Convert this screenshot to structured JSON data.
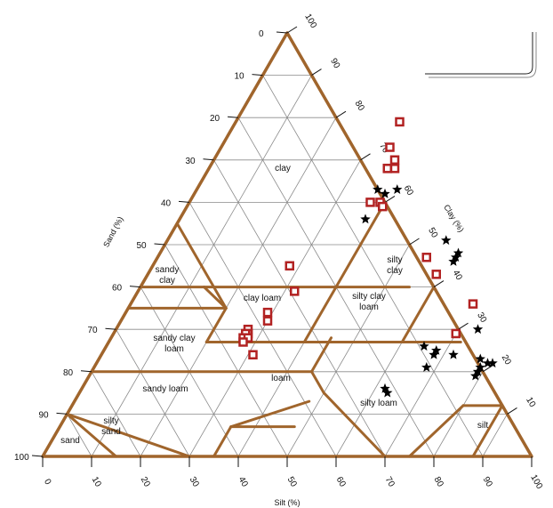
{
  "chart_data": {
    "type": "scatter",
    "subtype": "ternary-soil-texture",
    "axes": {
      "sand": {
        "label": "Sand (%)",
        "ticks": [
          "0",
          "10",
          "20",
          "30",
          "40",
          "50",
          "60",
          "70",
          "80",
          "90",
          "100"
        ]
      },
      "clay": {
        "label": "Clay (%)",
        "ticks": [
          "100",
          "90",
          "80",
          "70",
          "60",
          "50",
          "40",
          "30",
          "20",
          "10"
        ]
      },
      "silt": {
        "label": "Silt (%)",
        "ticks": [
          "0",
          "10",
          "20",
          "30",
          "40",
          "50",
          "60",
          "70",
          "80",
          "90",
          "100"
        ]
      },
      "range": [
        0,
        100
      ],
      "grid": true,
      "grid_step": 10
    },
    "regions": [
      {
        "name": "clay"
      },
      {
        "name": "silty clay",
        "lines": [
          "silty",
          "clay"
        ]
      },
      {
        "name": "sandy clay",
        "lines": [
          "sandy",
          "clay"
        ]
      },
      {
        "name": "clay loam",
        "lines": [
          "clay loam"
        ]
      },
      {
        "name": "silty clay loam",
        "lines": [
          "silty clay",
          "loam"
        ]
      },
      {
        "name": "sandy clay loam",
        "lines": [
          "sandy clay",
          "loam"
        ]
      },
      {
        "name": "loam",
        "lines": [
          "loam"
        ]
      },
      {
        "name": "sandy loam",
        "lines": [
          "sandy loam"
        ]
      },
      {
        "name": "silty loam",
        "lines": [
          "silty loam"
        ]
      },
      {
        "name": "silt",
        "lines": [
          "silt"
        ]
      },
      {
        "name": "silty sand",
        "lines": [
          "silty",
          "sand"
        ]
      },
      {
        "name": "sand",
        "lines": [
          "sand"
        ]
      }
    ],
    "series": [
      {
        "marker": "square",
        "color": "#b22222",
        "points": [
          {
            "silt": 33.5,
            "clay": 79
          },
          {
            "silt": 34.5,
            "clay": 73
          },
          {
            "silt": 37,
            "clay": 70
          },
          {
            "silt": 36.5,
            "clay": 68
          },
          {
            "silt": 38,
            "clay": 68
          },
          {
            "silt": 36.5,
            "clay": 68
          },
          {
            "silt": 37,
            "clay": 60
          },
          {
            "silt": 39,
            "clay": 60
          },
          {
            "silt": 40,
            "clay": 59
          },
          {
            "silt": 55,
            "clay": 47
          },
          {
            "silt": 59,
            "clay": 43
          },
          {
            "silt": 28,
            "clay": 45
          },
          {
            "silt": 32,
            "clay": 39
          },
          {
            "silt": 29,
            "clay": 34
          },
          {
            "silt": 30,
            "clay": 32
          },
          {
            "silt": 27,
            "clay": 30
          },
          {
            "silt": 27.5,
            "clay": 29
          },
          {
            "silt": 27,
            "clay": 29
          },
          {
            "silt": 27,
            "clay": 28
          },
          {
            "silt": 28,
            "clay": 28
          },
          {
            "silt": 27.5,
            "clay": 27
          },
          {
            "silt": 31,
            "clay": 24
          },
          {
            "silt": 70,
            "clay": 36
          },
          {
            "silt": 70,
            "clay": 29
          }
        ]
      },
      {
        "marker": "star",
        "color": "#000000",
        "points": [
          {
            "silt": 37,
            "clay": 63
          },
          {
            "silt": 39,
            "clay": 62
          },
          {
            "silt": 41,
            "clay": 63
          },
          {
            "silt": 38,
            "clay": 56
          },
          {
            "silt": 57,
            "clay": 51
          },
          {
            "silt": 61,
            "clay": 48
          },
          {
            "silt": 61,
            "clay": 47
          },
          {
            "silt": 61,
            "clay": 46
          },
          {
            "silt": 74,
            "clay": 30
          },
          {
            "silt": 65,
            "clay": 26
          },
          {
            "silt": 68,
            "clay": 25
          },
          {
            "silt": 68,
            "clay": 24
          },
          {
            "silt": 72,
            "clay": 24
          },
          {
            "silt": 78,
            "clay": 23
          },
          {
            "silt": 79,
            "clay": 21
          },
          {
            "silt": 80,
            "clay": 22
          },
          {
            "silt": 81,
            "clay": 22
          },
          {
            "silt": 79,
            "clay": 20
          },
          {
            "silt": 79,
            "clay": 19
          },
          {
            "silt": 68,
            "clay": 21
          },
          {
            "silt": 62,
            "clay": 16
          },
          {
            "silt": 63,
            "clay": 15
          }
        ]
      }
    ],
    "legend": {
      "position": "top-right",
      "entries": []
    },
    "colors": {
      "boundary": "#a0652c",
      "grid": "#8a8a8a",
      "square": "#b22222",
      "star": "#000000"
    }
  }
}
